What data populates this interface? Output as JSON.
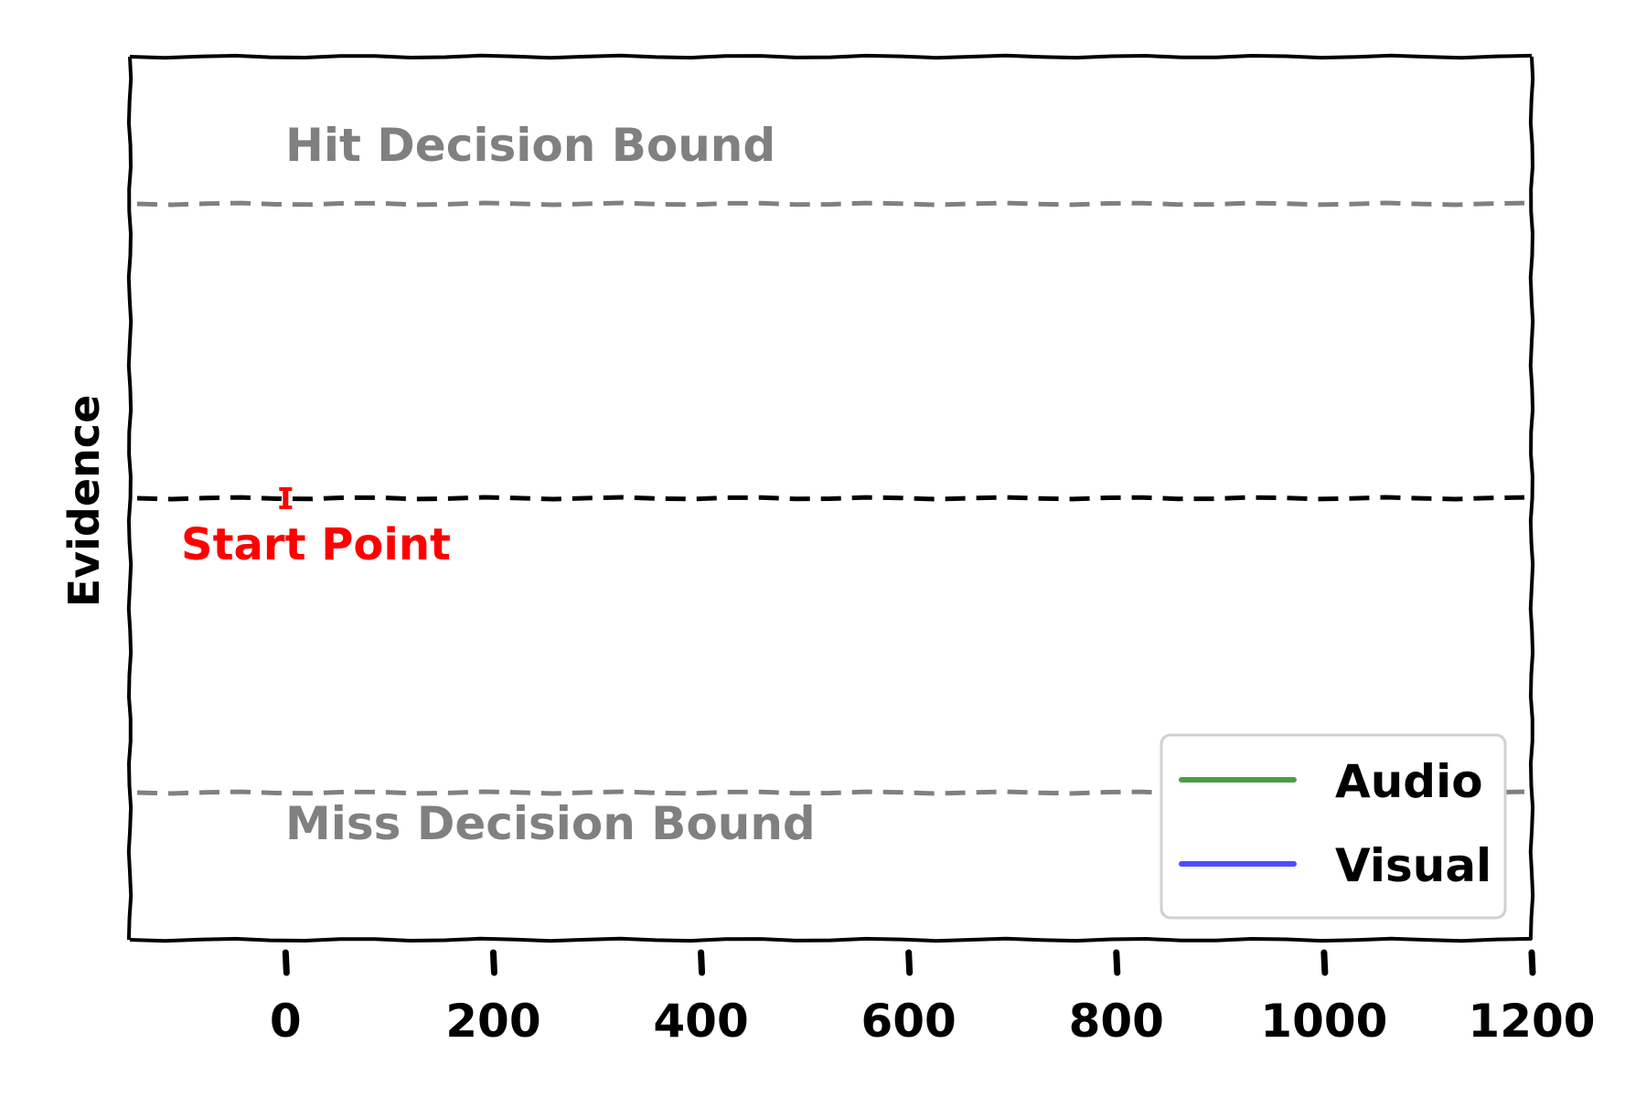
{
  "chart_data": {
    "type": "line",
    "ylabel": "Evidence",
    "xlabel": "",
    "xlim": [
      -150,
      1200
    ],
    "ylim": [
      -1.5,
      1.5
    ],
    "xticks": [
      0,
      200,
      400,
      600,
      800,
      1000,
      1200
    ],
    "xtick_labels": [
      "0",
      "200",
      "400",
      "600",
      "800",
      "1000",
      "1200"
    ],
    "grid": false,
    "legend_position": "lower-right",
    "series": [
      {
        "name": "Audio",
        "color": "#4a9e4a",
        "x": [],
        "y": []
      },
      {
        "name": "Visual",
        "color": "#4d4dff",
        "x": [],
        "y": []
      }
    ],
    "reference_lines": [
      {
        "label": "Hit Decision Bound",
        "y": 1.0,
        "color": "#808080",
        "style": "dashed"
      },
      {
        "label": "",
        "y": 0.0,
        "color": "#000000",
        "style": "dashed"
      },
      {
        "label": "Miss Decision Bound",
        "y": -1.0,
        "color": "#808080",
        "style": "dashed"
      }
    ],
    "start_point": {
      "label": "Start Point",
      "x": 0,
      "y": 0,
      "color": "#ff0000"
    }
  }
}
